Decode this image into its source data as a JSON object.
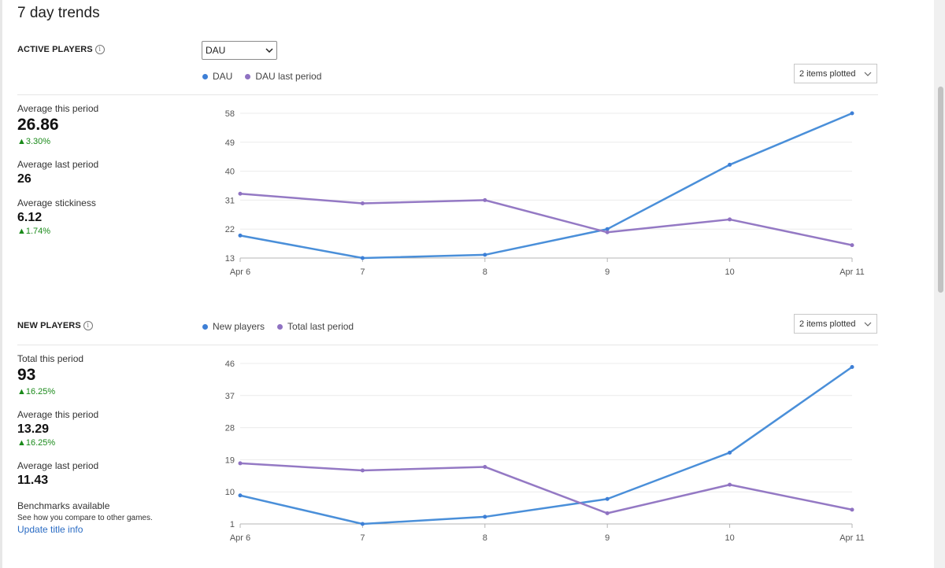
{
  "page": {
    "title": "7 day trends"
  },
  "colors": {
    "current": "#4a8fd9",
    "previous": "#9479c4",
    "positive": "#1a8a1a",
    "link": "#2b6cc4"
  },
  "active": {
    "label": "ACTIVE PLAYERS",
    "dropdown_value": "DAU",
    "legend": [
      "DAU",
      "DAU last period"
    ],
    "plotted_label": "2 items plotted",
    "stats": {
      "avg_this_label": "Average this period",
      "avg_this_value": "26.86",
      "avg_this_delta": "▲3.30%",
      "avg_last_label": "Average last period",
      "avg_last_value": "26",
      "stickiness_label": "Average stickiness",
      "stickiness_value": "6.12",
      "stickiness_delta": "▲1.74%"
    }
  },
  "newp": {
    "label": "NEW PLAYERS",
    "legend": [
      "New players",
      "Total last period"
    ],
    "plotted_label": "2 items plotted",
    "stats": {
      "total_this_label": "Total this period",
      "total_this_value": "93",
      "total_this_delta": "▲16.25%",
      "avg_this_label": "Average this period",
      "avg_this_value": "13.29",
      "avg_this_delta": "▲16.25%",
      "avg_last_label": "Average last period",
      "avg_last_value": "11.43",
      "bench_label": "Benchmarks available",
      "bench_sub": "See how you compare to other games.",
      "update_link": "Update title info"
    }
  },
  "chart_data": [
    {
      "type": "line",
      "x": [
        "Apr 6",
        "7",
        "8",
        "9",
        "10",
        "Apr 11"
      ],
      "yticks": [
        13,
        22,
        31,
        40,
        49,
        58
      ],
      "ylim": [
        13,
        58
      ],
      "series": [
        {
          "name": "DAU",
          "values": [
            20,
            13,
            14,
            22,
            42,
            58
          ]
        },
        {
          "name": "DAU last period",
          "values": [
            33,
            30,
            31,
            21,
            25,
            17
          ]
        }
      ],
      "grid": true,
      "legend": "top-left"
    },
    {
      "type": "line",
      "x": [
        "Apr 6",
        "7",
        "8",
        "9",
        "10",
        "Apr 11"
      ],
      "yticks": [
        1,
        10,
        19,
        28,
        37,
        46
      ],
      "ylim": [
        1,
        46
      ],
      "series": [
        {
          "name": "New players",
          "values": [
            9,
            1,
            3,
            8,
            21,
            45
          ]
        },
        {
          "name": "Total last period",
          "values": [
            18,
            16,
            17,
            4,
            12,
            5
          ]
        }
      ],
      "grid": true,
      "legend": "top-left"
    }
  ]
}
